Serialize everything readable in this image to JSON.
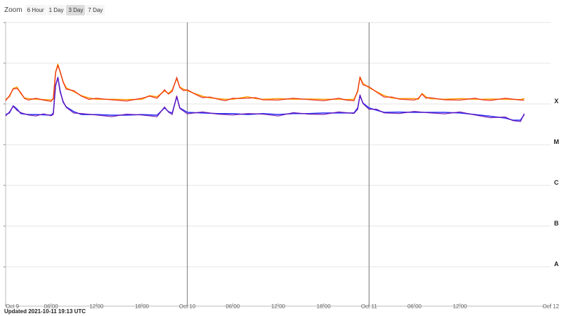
{
  "zoom": {
    "label": "Zoom",
    "buttons": [
      "6 Hour",
      "1 Day",
      "3 Day",
      "7 Day"
    ],
    "selected": "3 Day"
  },
  "footer": {
    "updated": "Updated 2021-10-11 19:13 UTC"
  },
  "colors": {
    "long_channel": "#ff9a00",
    "long_channel_alt": "#e81e10",
    "short_channel": "#2a2cf5",
    "short_channel_alt": "#6a0dad",
    "grid": "#e6e6e6",
    "day_line": "#777777"
  },
  "chart_data": {
    "type": "line",
    "x_ticks": [
      "Oct 9",
      "06:00",
      "12:00",
      "18:00",
      "Oct 10",
      "06:00",
      "12:00",
      "18:00",
      "Oct 11",
      "06:00",
      "12:00",
      "Oct 12"
    ],
    "x_range_hours": [
      0,
      72
    ],
    "y_scale": "log",
    "y_class_labels": [
      "A",
      "B",
      "C",
      "M",
      "X"
    ],
    "day_lines_hours": [
      24,
      48
    ],
    "series": [
      {
        "color": "#ff9a00",
        "points": [
          [
            0,
            1.3
          ],
          [
            0.5,
            1.5
          ],
          [
            1,
            2.4
          ],
          [
            1.5,
            2.6
          ],
          [
            2,
            1.8
          ],
          [
            2.5,
            1.4
          ],
          [
            3,
            1.35
          ],
          [
            4,
            1.3
          ],
          [
            5,
            1.28
          ],
          [
            6,
            1.25
          ],
          [
            6.3,
            1.3
          ],
          [
            6.6,
            6
          ],
          [
            6.9,
            9.5
          ],
          [
            7.2,
            6
          ],
          [
            7.6,
            3.5
          ],
          [
            8,
            2.5
          ],
          [
            9,
            2
          ],
          [
            10,
            1.6
          ],
          [
            11,
            1.4
          ],
          [
            12,
            1.3
          ],
          [
            14,
            1.3
          ],
          [
            16,
            1.28
          ],
          [
            18,
            1.3
          ],
          [
            19,
            1.6
          ],
          [
            20,
            1.5
          ],
          [
            21,
            2.1
          ],
          [
            21.5,
            1.8
          ],
          [
            22,
            2.2
          ],
          [
            22.6,
            4.2
          ],
          [
            23,
            2.6
          ],
          [
            23.5,
            2.3
          ],
          [
            24,
            2.1
          ],
          [
            25,
            1.8
          ],
          [
            26,
            1.55
          ],
          [
            27,
            1.4
          ],
          [
            28,
            1.35
          ],
          [
            29,
            1.3
          ],
          [
            30,
            1.3
          ],
          [
            31,
            1.4
          ],
          [
            32,
            1.5
          ],
          [
            33,
            1.35
          ],
          [
            34,
            1.3
          ],
          [
            36,
            1.35
          ],
          [
            38,
            1.3
          ],
          [
            40,
            1.32
          ],
          [
            42,
            1.3
          ],
          [
            44,
            1.3
          ],
          [
            45,
            1.28
          ],
          [
            46,
            1.3
          ],
          [
            46.5,
            2
          ],
          [
            46.8,
            4.6
          ],
          [
            47.2,
            3.2
          ],
          [
            48,
            2.5
          ],
          [
            49,
            2
          ],
          [
            50,
            1.6
          ],
          [
            51,
            1.4
          ],
          [
            52,
            1.35
          ],
          [
            54,
            1.35
          ],
          [
            54.5,
            1.3
          ],
          [
            55,
            1.8
          ],
          [
            55.5,
            1.5
          ],
          [
            56,
            1.35
          ],
          [
            58,
            1.3
          ],
          [
            60,
            1.35
          ],
          [
            62,
            1.3
          ],
          [
            63,
            1.3
          ],
          [
            64,
            1.32
          ],
          [
            66,
            1.3
          ],
          [
            68,
            1.28
          ],
          [
            68.5,
            1.35
          ]
        ]
      },
      {
        "color": "#2a2cf5",
        "points": [
          [
            0,
            0.55
          ],
          [
            0.5,
            0.6
          ],
          [
            1,
            0.9
          ],
          [
            1.5,
            0.75
          ],
          [
            2,
            0.58
          ],
          [
            3,
            0.55
          ],
          [
            4,
            0.55
          ],
          [
            5,
            0.54
          ],
          [
            6,
            0.53
          ],
          [
            6.3,
            0.6
          ],
          [
            6.6,
            2.8
          ],
          [
            6.9,
            4.5
          ],
          [
            7.2,
            2.1
          ],
          [
            7.6,
            1.1
          ],
          [
            8,
            0.85
          ],
          [
            9,
            0.65
          ],
          [
            10,
            0.55
          ],
          [
            12,
            0.55
          ],
          [
            14,
            0.53
          ],
          [
            16,
            0.53
          ],
          [
            18,
            0.55
          ],
          [
            20,
            0.53
          ],
          [
            21,
            0.8
          ],
          [
            21.5,
            0.65
          ],
          [
            22,
            0.6
          ],
          [
            22.6,
            1.5
          ],
          [
            23,
            0.8
          ],
          [
            24,
            0.62
          ],
          [
            26,
            0.6
          ],
          [
            28,
            0.58
          ],
          [
            30,
            0.58
          ],
          [
            32,
            0.55
          ],
          [
            34,
            0.58
          ],
          [
            36,
            0.55
          ],
          [
            38,
            0.58
          ],
          [
            40,
            0.58
          ],
          [
            42,
            0.6
          ],
          [
            44,
            0.6
          ],
          [
            46,
            0.6
          ],
          [
            46.5,
            0.8
          ],
          [
            46.8,
            1.6
          ],
          [
            47.2,
            1.05
          ],
          [
            48,
            0.8
          ],
          [
            49,
            0.7
          ],
          [
            50,
            0.62
          ],
          [
            52,
            0.63
          ],
          [
            54,
            0.62
          ],
          [
            56,
            0.62
          ],
          [
            58,
            0.62
          ],
          [
            60,
            0.6
          ],
          [
            62,
            0.55
          ],
          [
            64,
            0.5
          ],
          [
            66,
            0.45
          ],
          [
            67,
            0.4
          ],
          [
            68,
            0.4
          ],
          [
            68.5,
            0.55
          ]
        ]
      }
    ]
  }
}
